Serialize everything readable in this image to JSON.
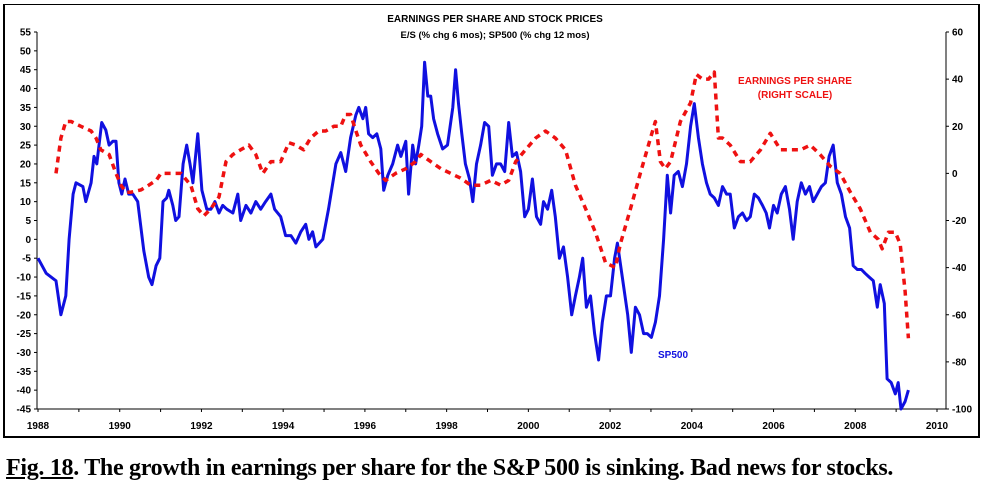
{
  "chart_data": {
    "type": "line",
    "title": "EARNINGS PER SHARE AND STOCK PRICES",
    "subtitle": "E/S (% chg 6 mos); SP500 (% chg 12 mos)",
    "xlabel": "",
    "ylabel_left": "",
    "ylabel_right": "",
    "xlim": [
      1988,
      2010
    ],
    "ylim_left": [
      -45,
      55
    ],
    "ylim_right": [
      -100,
      60
    ],
    "x_ticks": [
      "1988",
      "1990",
      "1992",
      "1994",
      "1996",
      "1998",
      "2000",
      "2002",
      "2004",
      "2006",
      "2008",
      "2010"
    ],
    "y_left_ticks": [
      "55",
      "50",
      "45",
      "40",
      "35",
      "30",
      "25",
      "20",
      "15",
      "10",
      "5",
      "0",
      "-5",
      "-10",
      "-15",
      "-20",
      "-25",
      "-30",
      "-35",
      "-40",
      "-45"
    ],
    "y_right_ticks": [
      "60",
      "40",
      "20",
      "0",
      "-20",
      "-40",
      "-60",
      "-80",
      "-100"
    ],
    "grid": false,
    "annotations": {
      "eps_label_1": "EARNINGS PER SHARE",
      "eps_label_2": "(RIGHT SCALE)",
      "sp_label": "SP500"
    },
    "series": [
      {
        "name": "SP500",
        "axis": "left",
        "color": "#1010e0",
        "style": "solid",
        "x": [
          1988.0,
          1988.2,
          1988.44,
          1988.56,
          1988.68,
          1988.76,
          1988.86,
          1988.93,
          1989.1,
          1989.17,
          1989.3,
          1989.37,
          1989.44,
          1989.56,
          1989.66,
          1989.74,
          1989.83,
          1989.91,
          1989.98,
          1990.05,
          1990.13,
          1990.22,
          1990.32,
          1990.44,
          1990.59,
          1990.71,
          1990.79,
          1990.89,
          1990.98,
          1991.06,
          1991.15,
          1991.2,
          1991.3,
          1991.37,
          1991.45,
          1991.55,
          1991.64,
          1991.72,
          1991.79,
          1991.91,
          1992.01,
          1992.13,
          1992.23,
          1992.33,
          1992.43,
          1992.52,
          1992.62,
          1992.77,
          1992.89,
          1992.96,
          1993.09,
          1993.21,
          1993.33,
          1993.45,
          1993.57,
          1993.7,
          1993.79,
          1993.94,
          1994.06,
          1994.19,
          1994.31,
          1994.43,
          1994.55,
          1994.63,
          1994.72,
          1994.8,
          1994.97,
          1995.11,
          1995.29,
          1995.41,
          1995.53,
          1995.65,
          1995.78,
          1995.85,
          1995.95,
          1996.02,
          1996.09,
          1996.19,
          1996.29,
          1996.39,
          1996.46,
          1996.56,
          1996.68,
          1996.8,
          1996.88,
          1997.0,
          1997.07,
          1997.17,
          1997.24,
          1997.32,
          1997.39,
          1997.46,
          1997.54,
          1997.61,
          1997.68,
          1997.78,
          1997.9,
          1998.02,
          1998.15,
          1998.22,
          1998.29,
          1998.37,
          1998.46,
          1998.56,
          1998.64,
          1998.73,
          1998.83,
          1998.93,
          1999.03,
          1999.12,
          1999.22,
          1999.32,
          1999.42,
          1999.52,
          1999.61,
          1999.71,
          1999.81,
          1999.91,
          2000.0,
          2000.1,
          2000.2,
          2000.3,
          2000.37,
          2000.47,
          2000.57,
          2000.66,
          2000.76,
          2000.86,
          2000.96,
          2001.06,
          2001.15,
          2001.25,
          2001.33,
          2001.42,
          2001.52,
          2001.62,
          2001.72,
          2001.81,
          2001.91,
          2002.01,
          2002.11,
          2002.18,
          2002.3,
          2002.43,
          2002.52,
          2002.62,
          2002.72,
          2002.82,
          2002.91,
          2003.01,
          2003.11,
          2003.21,
          2003.31,
          2003.4,
          2003.48,
          2003.57,
          2003.67,
          2003.77,
          2003.87,
          2003.97,
          2004.06,
          2004.16,
          2004.26,
          2004.36,
          2004.45,
          2004.55,
          2004.65,
          2004.75,
          2004.85,
          2004.94,
          2005.04,
          2005.14,
          2005.24,
          2005.34,
          2005.43,
          2005.53,
          2005.63,
          2005.73,
          2005.82,
          2005.9,
          2006.0,
          2006.09,
          2006.19,
          2006.29,
          2006.39,
          2006.48,
          2006.58,
          2006.68,
          2006.78,
          2006.88,
          2006.97,
          2007.07,
          2007.17,
          2007.27,
          2007.36,
          2007.46,
          2007.56,
          2007.66,
          2007.76,
          2007.86,
          2007.95,
          2008.05,
          2008.15,
          2008.24,
          2008.34,
          2008.44,
          2008.54,
          2008.61,
          2008.71,
          2008.78,
          2008.88,
          2008.98,
          2009.05,
          2009.12,
          2009.22,
          2009.3
        ],
        "values": [
          -5,
          -9,
          -11,
          -20,
          -15,
          0,
          12,
          15,
          14,
          10,
          15,
          22,
          20,
          31,
          29,
          25,
          26,
          26,
          15,
          12,
          16,
          12,
          12,
          10,
          -3,
          -10,
          -12,
          -7,
          -5,
          10,
          11,
          13,
          9,
          5,
          6,
          20,
          25,
          20,
          15,
          28,
          13,
          8,
          8,
          10,
          7,
          9,
          8,
          7,
          12,
          5,
          9,
          7,
          10,
          8,
          10,
          12,
          8,
          6,
          1,
          1,
          -1,
          2,
          4,
          0,
          2,
          -2,
          0,
          8,
          20,
          23,
          18,
          27,
          33,
          35,
          32,
          35,
          28,
          27,
          28,
          24,
          13,
          17,
          20,
          25,
          22,
          26,
          12,
          25,
          20,
          25,
          30,
          47,
          38,
          38,
          32,
          28,
          24,
          25,
          35,
          45,
          36,
          28,
          20,
          16,
          10,
          20,
          25,
          31,
          30,
          17,
          20,
          20,
          18,
          31,
          22,
          23,
          18,
          6,
          8,
          16,
          6,
          4,
          10,
          8,
          13,
          6,
          -5,
          -2,
          -10,
          -20,
          -15,
          -10,
          -5,
          -18,
          -15,
          -25,
          -32,
          -22,
          -15,
          -15,
          -5,
          -1,
          -10,
          -20,
          -30,
          -18,
          -20,
          -25,
          -25,
          -26,
          -22,
          -15,
          0,
          17,
          7,
          17,
          18,
          14,
          20,
          30,
          36,
          27,
          20,
          15,
          12,
          11,
          9,
          14,
          12,
          12,
          3,
          6,
          7,
          5,
          6,
          12,
          11,
          9,
          7,
          3,
          9,
          7,
          12,
          14,
          8,
          0,
          10,
          15,
          12,
          14,
          10,
          12,
          14,
          15,
          22,
          25,
          15,
          12,
          6,
          3,
          -7,
          -8,
          -8,
          -9,
          -10,
          -11,
          -18,
          -12,
          -17,
          -37,
          -38,
          -41,
          -38,
          -45,
          -43,
          -40
        ]
      },
      {
        "name": "EARNINGS PER SHARE (RIGHT SCALE)",
        "axis": "right",
        "color": "#ee1111",
        "style": "dashed",
        "x": [
          1988.44,
          1988.56,
          1988.68,
          1988.81,
          1989.05,
          1989.3,
          1989.42,
          1989.54,
          1989.74,
          1989.91,
          1990.03,
          1990.15,
          1990.27,
          1990.52,
          1990.71,
          1990.89,
          1991.01,
          1991.25,
          1991.5,
          1991.74,
          1991.91,
          1992.06,
          1992.23,
          1992.43,
          1992.6,
          1992.77,
          1992.96,
          1993.16,
          1993.33,
          1993.5,
          1993.7,
          1993.94,
          1994.14,
          1994.31,
          1994.5,
          1994.67,
          1994.87,
          1995.04,
          1995.24,
          1995.41,
          1995.53,
          1995.65,
          1995.78,
          1995.9,
          1996.14,
          1996.34,
          1996.51,
          1996.75,
          1997.0,
          1997.24,
          1997.37,
          1997.61,
          1997.86,
          1998.1,
          1998.34,
          1998.59,
          1998.83,
          1999.08,
          1999.32,
          1999.52,
          1999.69,
          1999.93,
          2000.18,
          2000.42,
          2000.66,
          2000.91,
          2001.15,
          2001.4,
          2001.64,
          2001.89,
          2002.13,
          2002.25,
          2002.5,
          2002.74,
          2002.99,
          2003.11,
          2003.23,
          2003.35,
          2003.48,
          2003.72,
          2003.97,
          2004.11,
          2004.26,
          2004.41,
          2004.55,
          2004.65,
          2004.75,
          2004.94,
          2005.19,
          2005.43,
          2005.68,
          2005.92,
          2006.17,
          2006.41,
          2006.66,
          2006.9,
          2007.14,
          2007.39,
          2007.63,
          2007.88,
          2008.12,
          2008.37,
          2008.56,
          2008.66,
          2008.81,
          2008.98,
          2009.1,
          2009.22,
          2009.3
        ],
        "values": [
          0,
          15,
          22,
          22,
          20,
          18,
          15,
          10,
          8,
          0,
          -5,
          -8,
          -8,
          -7,
          -5,
          -3,
          0,
          0,
          0,
          -5,
          -15,
          -18,
          -15,
          -10,
          5,
          8,
          10,
          12,
          8,
          0,
          5,
          5,
          13,
          12,
          10,
          15,
          18,
          18,
          20,
          20,
          25,
          25,
          18,
          12,
          5,
          0,
          -3,
          0,
          2,
          5,
          8,
          5,
          2,
          0,
          -2,
          -5,
          -5,
          -3,
          -5,
          -3,
          5,
          10,
          15,
          18,
          15,
          10,
          -5,
          -15,
          -25,
          -38,
          -40,
          -30,
          -15,
          0,
          15,
          22,
          5,
          2,
          5,
          22,
          30,
          42,
          40,
          40,
          43,
          15,
          15,
          12,
          5,
          5,
          10,
          17,
          10,
          10,
          10,
          12,
          8,
          3,
          0,
          -8,
          -15,
          -25,
          -28,
          -32,
          -25,
          -25,
          -30,
          -50,
          -70
        ]
      }
    ]
  },
  "caption": {
    "fig": "Fig. 18",
    "text": ". The growth in earnings per share for the S&P 500 is sinking. Bad news for stocks."
  }
}
